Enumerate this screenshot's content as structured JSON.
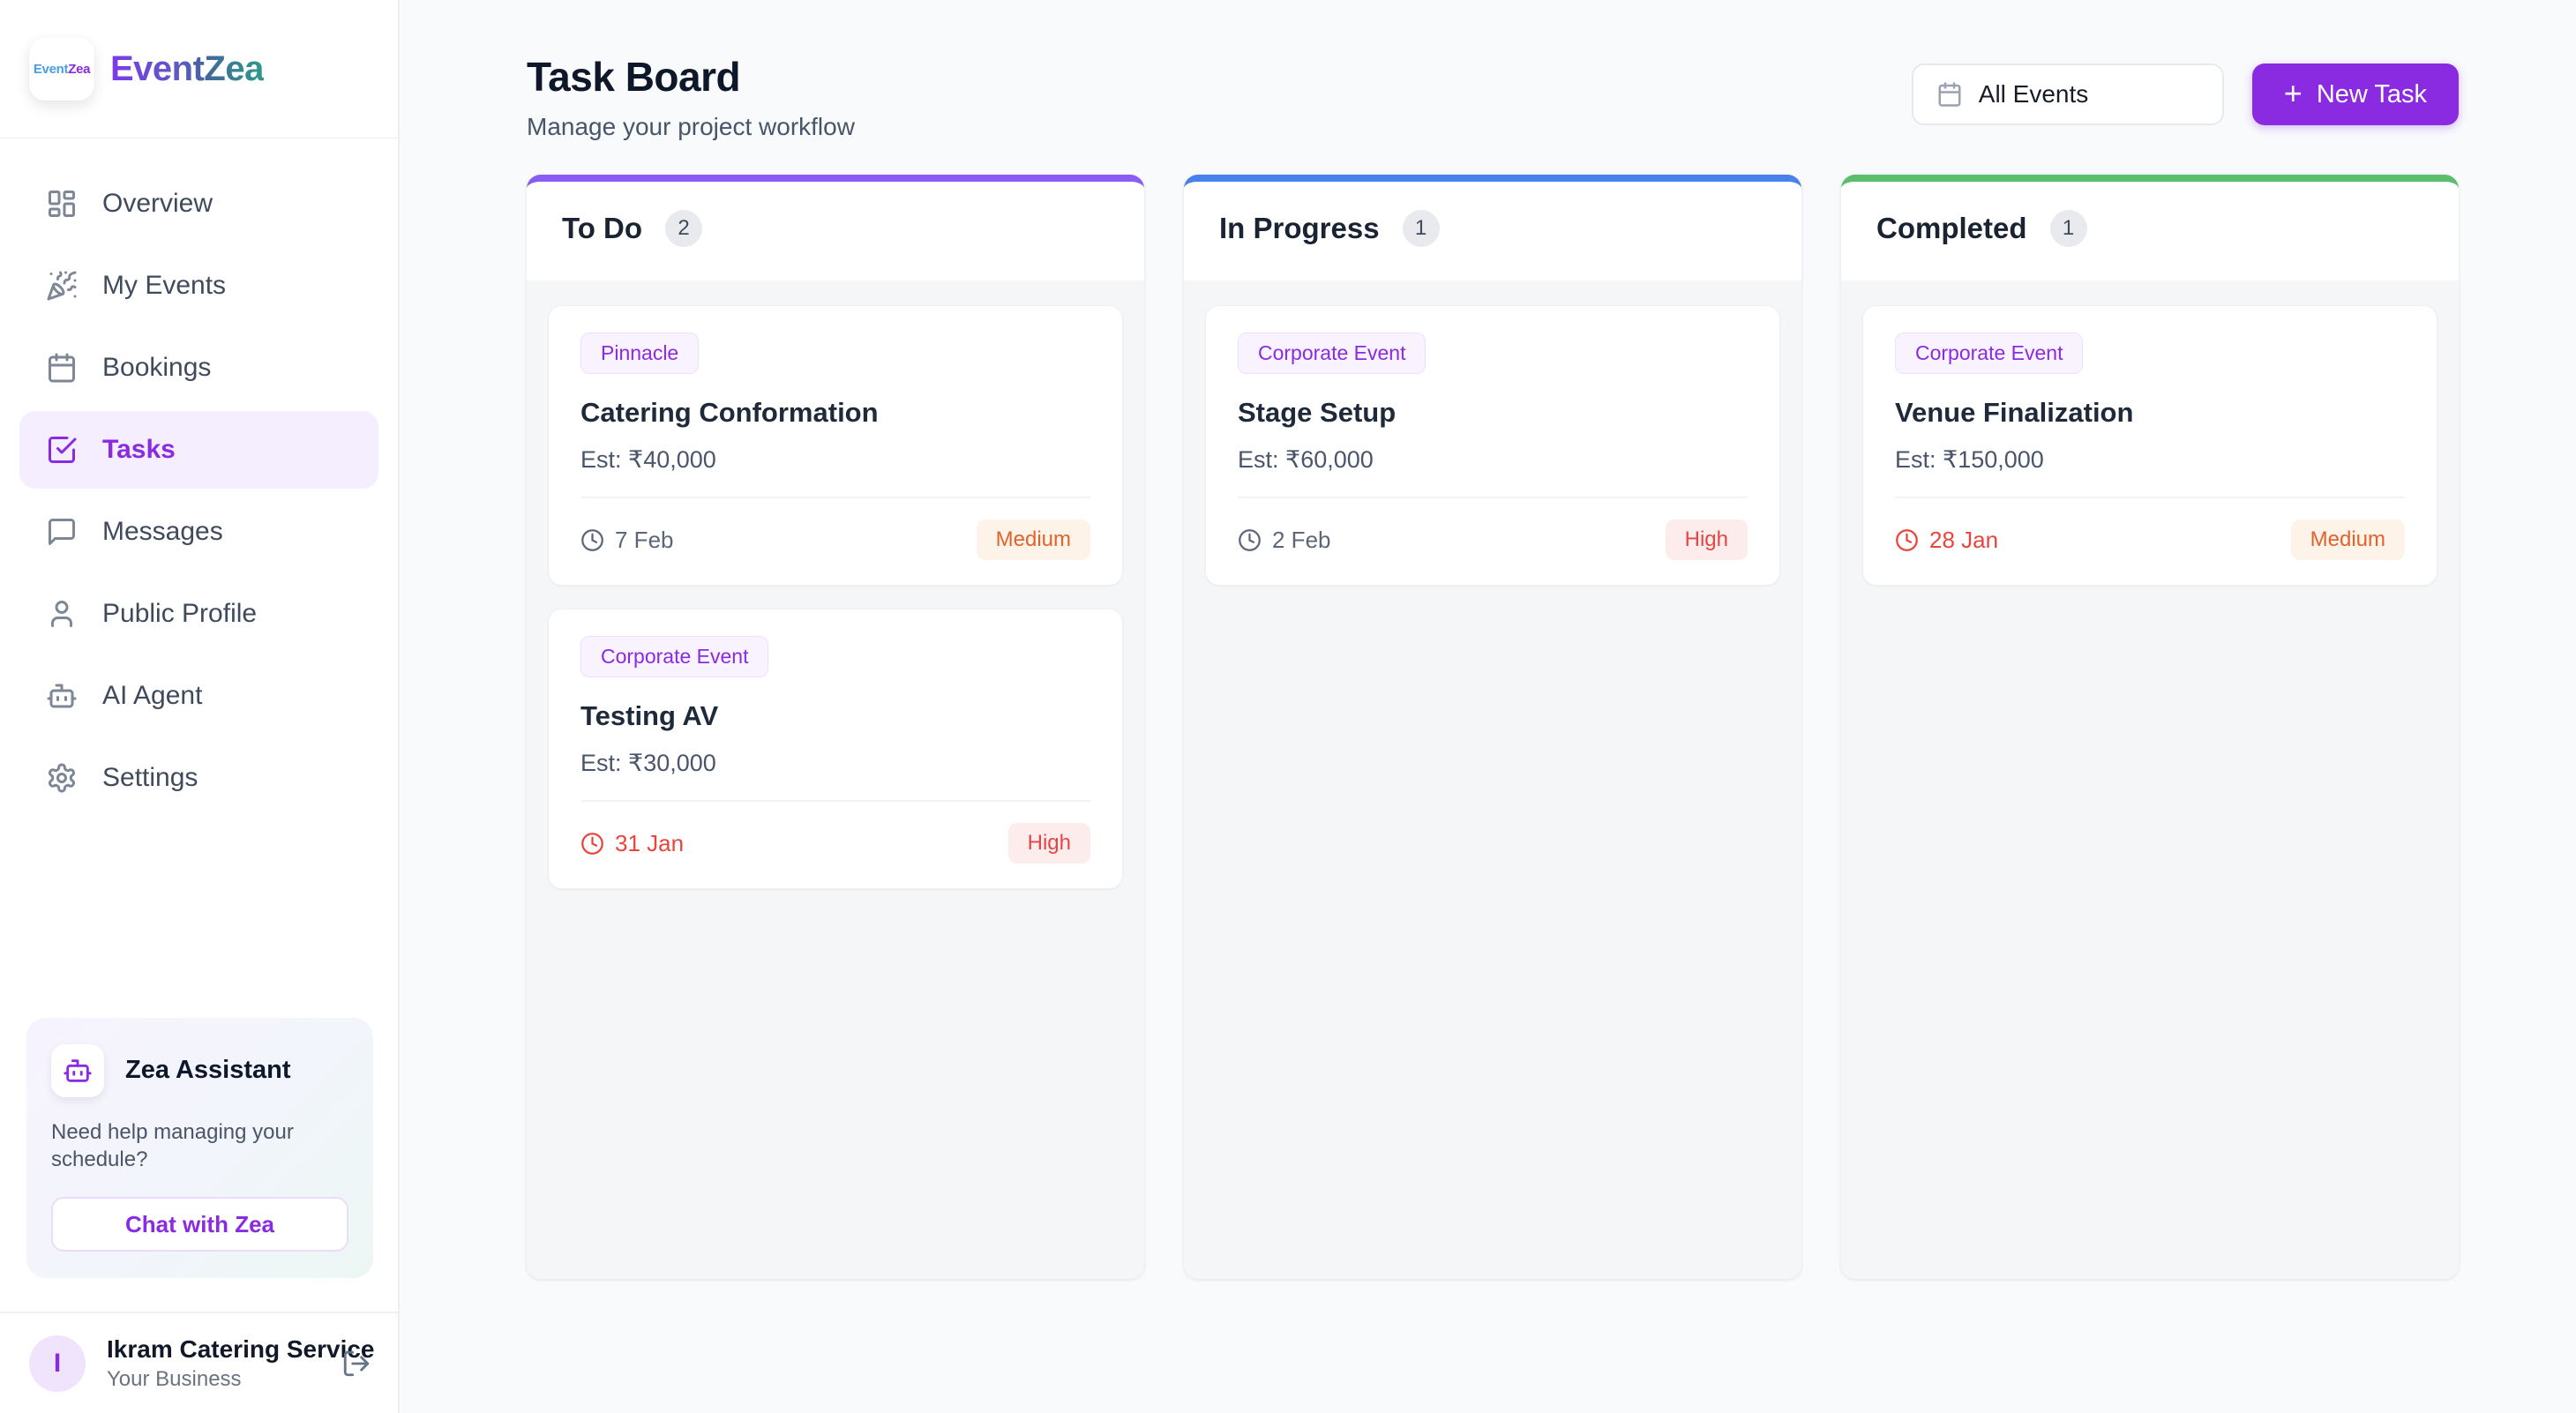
{
  "app": {
    "name": "EventZea",
    "logo_small": {
      "event": "Event",
      "zea": "Zea"
    }
  },
  "sidebar": {
    "items": [
      {
        "label": "Overview",
        "icon": "grid",
        "active": false
      },
      {
        "label": "My Events",
        "icon": "party-popper",
        "active": false
      },
      {
        "label": "Bookings",
        "icon": "calendar",
        "active": false
      },
      {
        "label": "Tasks",
        "icon": "check-square",
        "active": true
      },
      {
        "label": "Messages",
        "icon": "message",
        "active": false
      },
      {
        "label": "Public Profile",
        "icon": "user",
        "active": false
      },
      {
        "label": "AI Agent",
        "icon": "bot",
        "active": false
      },
      {
        "label": "Settings",
        "icon": "gear",
        "active": false
      }
    ],
    "assistant": {
      "title": "Zea Assistant",
      "description": "Need help managing your schedule?",
      "button_label": "Chat with Zea",
      "icon": "bot"
    },
    "user": {
      "initial": "I",
      "name": "Ikram Catering Service",
      "subtitle": "Your Business",
      "logout_icon": "log-out"
    }
  },
  "header": {
    "title": "Task Board",
    "subtitle": "Manage your project workflow",
    "filter_label": "All Events",
    "filter_icon": "calendar",
    "new_task_plus": "+",
    "new_task_label": "New Task"
  },
  "board": {
    "columns": [
      {
        "title": "To Do",
        "count": "2",
        "accent": "#8a5cf6",
        "cards": [
          {
            "tag": "Pinnacle",
            "title": "Catering Conformation",
            "estimate": "Est: ₹40,000",
            "date": "7 Feb",
            "overdue": false,
            "priority": "Medium"
          },
          {
            "tag": "Corporate Event",
            "title": "Testing AV",
            "estimate": "Est: ₹30,000",
            "date": "31 Jan",
            "overdue": true,
            "priority": "High"
          }
        ]
      },
      {
        "title": "In Progress",
        "count": "1",
        "accent": "#4880ec",
        "cards": [
          {
            "tag": "Corporate Event",
            "title": "Stage Setup",
            "estimate": "Est: ₹60,000",
            "date": "2 Feb",
            "overdue": false,
            "priority": "High"
          }
        ]
      },
      {
        "title": "Completed",
        "count": "1",
        "accent": "#5bbe6c",
        "cards": [
          {
            "tag": "Corporate Event",
            "title": "Venue Finalization",
            "estimate": "Est: ₹150,000",
            "date": "28 Jan",
            "overdue": true,
            "priority": "Medium"
          }
        ]
      }
    ]
  },
  "colors": {
    "primary_purple": "#8a2be2",
    "todo_accent": "#8a5cf6",
    "in_progress_accent": "#4880ec",
    "completed_accent": "#5bbe6c",
    "tag_text": "#8a2be2",
    "tag_bg": "#f8f3fe",
    "priority_medium_text": "#e2622c",
    "priority_medium_bg": "#fdf3e8",
    "priority_high_text": "#e64545",
    "priority_high_bg": "#fdecec",
    "overdue_red": "#e8453c"
  }
}
